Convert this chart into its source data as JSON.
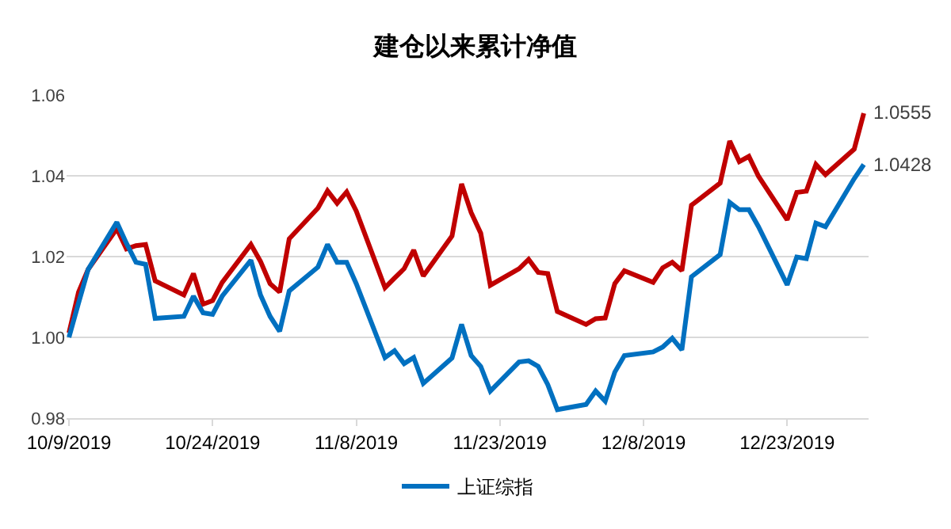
{
  "chart_data": {
    "type": "line",
    "title": "建仓以来累计净值",
    "x": [
      "2019-10-09",
      "2019-10-10",
      "2019-10-11",
      "2019-10-14",
      "2019-10-15",
      "2019-10-16",
      "2019-10-17",
      "2019-10-18",
      "2019-10-21",
      "2019-10-22",
      "2019-10-23",
      "2019-10-24",
      "2019-10-25",
      "2019-10-28",
      "2019-10-29",
      "2019-10-30",
      "2019-10-31",
      "2019-11-01",
      "2019-11-04",
      "2019-11-05",
      "2019-11-06",
      "2019-11-07",
      "2019-11-08",
      "2019-11-11",
      "2019-11-12",
      "2019-11-13",
      "2019-11-14",
      "2019-11-15",
      "2019-11-18",
      "2019-11-19",
      "2019-11-20",
      "2019-11-21",
      "2019-11-22",
      "2019-11-25",
      "2019-11-26",
      "2019-11-27",
      "2019-11-28",
      "2019-11-29",
      "2019-12-02",
      "2019-12-03",
      "2019-12-04",
      "2019-12-05",
      "2019-12-06",
      "2019-12-09",
      "2019-12-10",
      "2019-12-11",
      "2019-12-12",
      "2019-12-13",
      "2019-12-16",
      "2019-12-17",
      "2019-12-18",
      "2019-12-19",
      "2019-12-20",
      "2019-12-23",
      "2019-12-24",
      "2019-12-25",
      "2019-12-26",
      "2019-12-27",
      "2019-12-30",
      "2019-12-31"
    ],
    "series": [
      {
        "color": "#c00000",
        "values": [
          1.0011,
          1.0112,
          1.0168,
          1.0269,
          1.0219,
          1.0227,
          1.023,
          1.014,
          1.0105,
          1.0158,
          1.0082,
          1.0091,
          1.0136,
          1.023,
          1.0188,
          1.0133,
          1.0112,
          1.0244,
          1.032,
          1.0363,
          1.0332,
          1.036,
          1.0313,
          1.0123,
          1.0147,
          1.017,
          1.0216,
          1.0152,
          1.0251,
          1.038,
          1.0309,
          1.0258,
          1.0129,
          1.017,
          1.0193,
          1.0161,
          1.0158,
          1.0064,
          1.0032,
          1.0046,
          1.0048,
          1.0133,
          1.0165,
          1.0136,
          1.0172,
          1.0186,
          1.0165,
          1.0327,
          1.0382,
          1.0486,
          1.0435,
          1.0448,
          1.0399,
          1.0291,
          1.0359,
          1.0362,
          1.0428,
          1.0403,
          1.0466,
          1.0555
        ]
      },
      {
        "name": "上证综指",
        "color": "#0070c0",
        "values": [
          1.0,
          1.0085,
          1.0168,
          1.0285,
          1.0233,
          1.0186,
          1.0181,
          1.0047,
          1.0052,
          1.0102,
          1.0061,
          1.0057,
          1.0102,
          1.0191,
          1.0105,
          1.0052,
          1.0015,
          1.0115,
          1.0174,
          1.023,
          1.0186,
          1.0186,
          1.0133,
          0.995,
          0.9967,
          0.9935,
          0.995,
          0.9886,
          0.9949,
          1.0032,
          0.9955,
          0.9928,
          0.9867,
          0.9939,
          0.9942,
          0.9928,
          0.9883,
          0.9821,
          0.9834,
          0.9867,
          0.9842,
          0.9914,
          0.9955,
          0.9964,
          0.9976,
          0.9998,
          0.9969,
          1.015,
          1.0205,
          1.0334,
          1.0316,
          1.0316,
          1.0274,
          1.013,
          1.0199,
          1.0195,
          1.0283,
          1.0274,
          1.0393,
          1.0428
        ]
      }
    ],
    "annotations": [
      {
        "text": "1.0555",
        "x": "2019-12-31",
        "y": 1.0555
      },
      {
        "text": "1.0428",
        "x": "2019-12-31",
        "y": 1.0428
      }
    ],
    "xlim": [
      "2019-10-08T18:00",
      "2019-12-31T12:00"
    ],
    "xticks": [
      {
        "value": "2019-10-09",
        "label": "10/9/2019"
      },
      {
        "value": "2019-10-24",
        "label": "10/24/2019"
      },
      {
        "value": "2019-11-08",
        "label": "11/8/2019"
      },
      {
        "value": "2019-11-23",
        "label": "11/23/2019"
      },
      {
        "value": "2019-12-08",
        "label": "12/8/2019"
      },
      {
        "value": "2019-12-23",
        "label": "12/23/2019"
      }
    ],
    "ylim": [
      0.98,
      1.06
    ],
    "yticks": [
      0.98,
      {
        "value": 1,
        "label": "1.00"
      },
      1.02,
      1.04,
      1.06
    ],
    "grid": "y",
    "legend": "bottom",
    "marker": "none",
    "line_style": "solid"
  }
}
